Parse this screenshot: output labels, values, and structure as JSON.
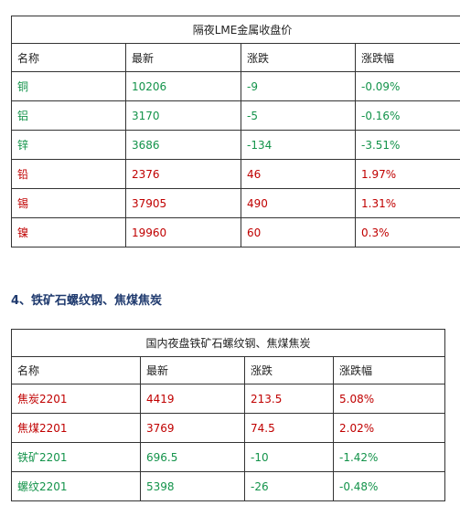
{
  "table1": {
    "title": "隔夜LME金属收盘价",
    "header": [
      "名称",
      "最新",
      "涨跌",
      "涨跌幅"
    ],
    "rows": [
      [
        "铜",
        "10206",
        "-9",
        "-0.09%"
      ],
      [
        "铝",
        "3170",
        "-5",
        "-0.16%"
      ],
      [
        "锌",
        "3686",
        "-134",
        "-3.51%"
      ],
      [
        "铅",
        "2376",
        "46",
        "1.97%"
      ],
      [
        "锡",
        "37905",
        "490",
        "1.31%"
      ],
      [
        "镍",
        "19960",
        "60",
        "0.3%"
      ]
    ]
  },
  "section": {
    "heading": "4、铁矿石螺纹钢、焦煤焦炭"
  },
  "table2": {
    "title": "国内夜盘铁矿石螺纹钢、焦煤焦炭",
    "header": [
      "名称",
      "最新",
      "涨跌",
      "涨跌幅"
    ],
    "rows": [
      [
        "焦炭2201",
        "4419",
        "213.5",
        "5.08%"
      ],
      [
        "焦煤2201",
        "3769",
        "74.5",
        "2.02%"
      ],
      [
        "铁矿2201",
        "696.5",
        "-10",
        "-1.42%"
      ],
      [
        "螺纹2201",
        "5398",
        "-26",
        "-0.48%"
      ]
    ]
  }
}
